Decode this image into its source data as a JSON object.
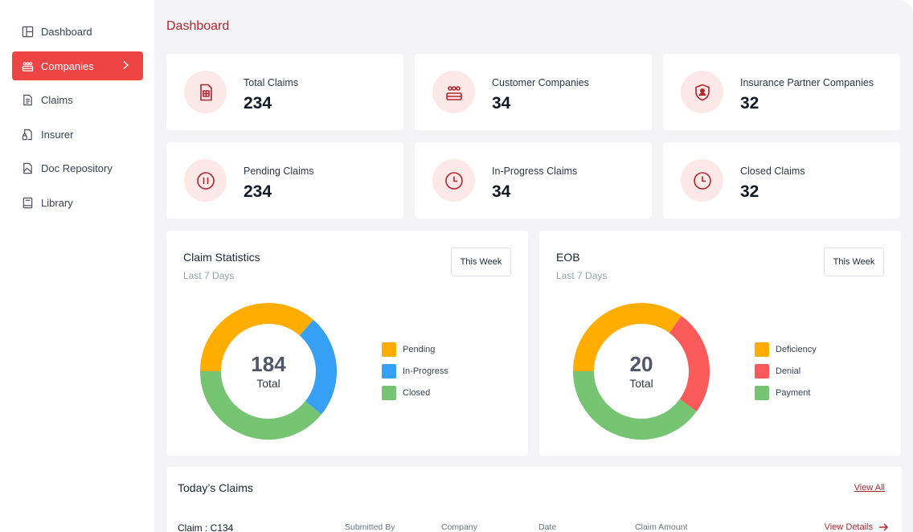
{
  "sidebar": {
    "items": [
      {
        "label": "Dashboard",
        "icon": "layout-icon"
      },
      {
        "label": "Companies",
        "icon": "companies-icon",
        "active": true
      },
      {
        "label": "Claims",
        "icon": "document-icon"
      },
      {
        "label": "Insurer",
        "icon": "file-lock-icon"
      },
      {
        "label": "Doc Repository",
        "icon": "file-image-icon"
      },
      {
        "label": "Library",
        "icon": "book-icon"
      }
    ]
  },
  "page": {
    "title": "Dashboard"
  },
  "stats": [
    {
      "label": "Total Claims",
      "value": "234",
      "icon": "receipt-icon"
    },
    {
      "label": "Customer Companies",
      "value": "34",
      "icon": "group-icon"
    },
    {
      "label": "Insurance Partner Companies",
      "value": "32",
      "icon": "shield-user-icon"
    },
    {
      "label": "Pending Claims",
      "value": "234",
      "icon": "pause-icon"
    },
    {
      "label": "In-Progress Claims",
      "value": "34",
      "icon": "clock-icon"
    },
    {
      "label": "Closed Claims",
      "value": "32",
      "icon": "clock-icon"
    }
  ],
  "claim_statistics": {
    "title": "Claim Statistics",
    "subtitle": "Last 7 Days",
    "filter": "This Week",
    "total": "184",
    "total_label": "Total"
  },
  "eob": {
    "title": "EOB",
    "subtitle": "Last 7 Days",
    "filter": "This Week",
    "total": "20",
    "total_label": "Total"
  },
  "chart_data": [
    {
      "type": "pie",
      "title": "Claim Statistics",
      "categories": [
        "Pending",
        "In-Progress",
        "Closed"
      ],
      "values": [
        67,
        45,
        72
      ],
      "colors": [
        "#ffad00",
        "#36a0f4",
        "#74c472"
      ],
      "total": 184
    },
    {
      "type": "pie",
      "title": "EOB",
      "categories": [
        "Deficiency",
        "Denial",
        "Payment"
      ],
      "values": [
        7,
        5,
        8
      ],
      "colors": [
        "#ffad00",
        "#fa5a5a",
        "#74c472"
      ],
      "total": 20
    }
  ],
  "todays_claims": {
    "title": "Today’s Claims",
    "view_all": "View All",
    "columns": [
      "Submitted By",
      "Company",
      "Date",
      "Claim Amount"
    ],
    "rows": [
      {
        "claim": "Claim : C134",
        "action": "View Details"
      }
    ]
  },
  "colors": {
    "accent": "#ef4444",
    "brand_dark": "#b3262d",
    "background": "#f4f4f7"
  }
}
